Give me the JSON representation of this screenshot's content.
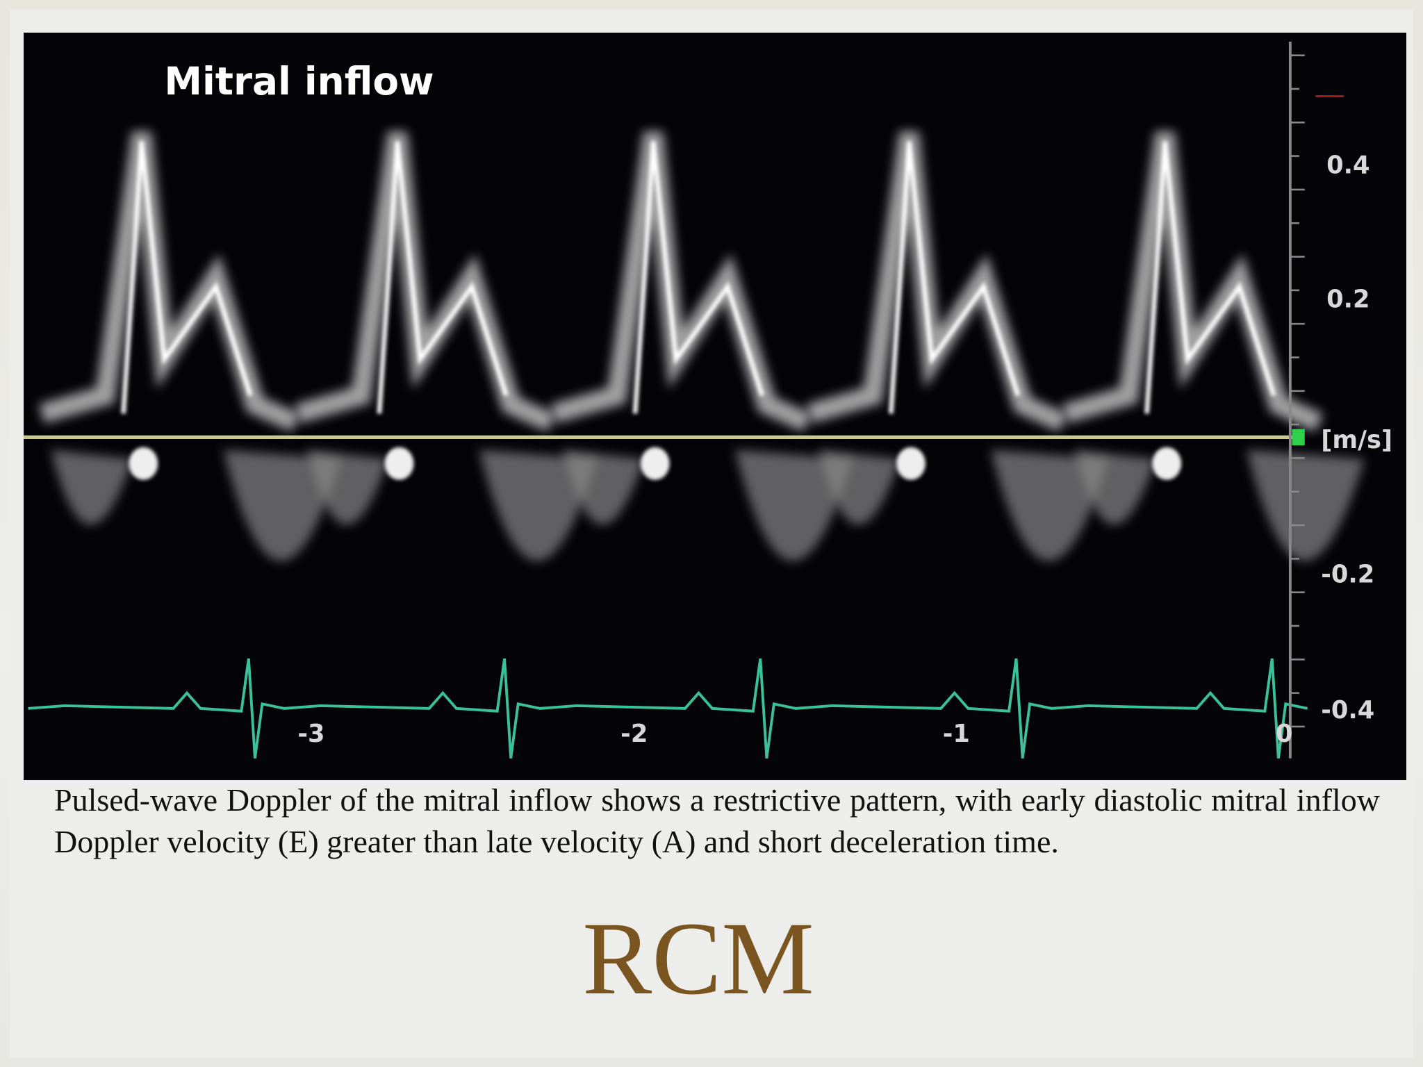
{
  "image": {
    "title": "Mitral inflow",
    "scale_labels": [
      "0.4",
      "0.2",
      "[m/s]",
      "-0.2",
      "-0.4"
    ],
    "time_labels": [
      "-3",
      "-2",
      "-1",
      "0"
    ]
  },
  "caption": "Pulsed-wave Doppler of the mitral inflow shows a restrictive pattern, with early diastolic mitral inflow Doppler velocity (E) greater than late velocity (A) and short deceleration time.",
  "title": "RCM"
}
